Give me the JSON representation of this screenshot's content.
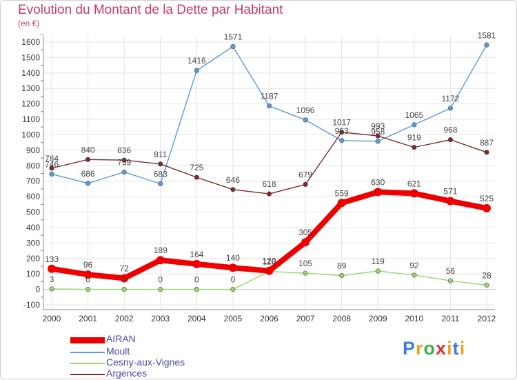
{
  "header": {
    "title": "Evolution du Montant de la Dette par Habitant",
    "unit": "(en €)"
  },
  "chart_data": {
    "type": "line",
    "title": "Evolution du Montant de la Dette par Habitant",
    "subtitle": "(en €)",
    "xlabel": "",
    "ylabel": "",
    "x": [
      "2000",
      "2001",
      "2002",
      "2003",
      "2004",
      "2005",
      "2006",
      "2007",
      "2008",
      "2009",
      "2010",
      "2011",
      "2012"
    ],
    "ylim": [
      -100,
      1600
    ],
    "yticks": [
      "-100",
      "0",
      "100",
      "200",
      "300",
      "400",
      "500",
      "600",
      "700",
      "800",
      "900",
      "1000",
      "1100",
      "1200",
      "1300",
      "1400",
      "1500",
      "1600"
    ],
    "grid": true,
    "legend": "bottom-left",
    "series": [
      {
        "name": "AIRAN",
        "color": "#ee0000",
        "values": [
          133,
          96,
          72,
          189,
          164,
          140,
          120,
          305,
          559,
          630,
          621,
          571,
          525
        ],
        "labels": [
          "133",
          "96",
          "72",
          "189",
          "164",
          "140",
          "120",
          "305",
          "559",
          "630",
          "621",
          "571",
          "525"
        ]
      },
      {
        "name": "Moult",
        "color": "#5b9bd5",
        "values": [
          746,
          686,
          759,
          683,
          1416,
          1571,
          1187,
          1096,
          963,
          958,
          1065,
          1172,
          1581
        ],
        "labels": [
          "746",
          "686",
          "759",
          "683",
          "1416",
          "1571",
          "1187",
          "1096",
          "963",
          "958",
          "1065",
          "1172",
          "1581"
        ]
      },
      {
        "name": "Cesny-aux-Vignes",
        "color": "#99d56a",
        "values": [
          3,
          0,
          0,
          0,
          0,
          0,
          116,
          105,
          89,
          119,
          92,
          56,
          28
        ],
        "labels": [
          "3",
          "0",
          "0",
          "0",
          "0",
          "0",
          "116",
          "105",
          "89",
          "119",
          "92",
          "56",
          "28"
        ]
      },
      {
        "name": "Argences",
        "color": "#7a2a2a",
        "values": [
          784,
          840,
          836,
          811,
          725,
          646,
          618,
          679,
          1017,
          993,
          919,
          968,
          887
        ],
        "labels": [
          "784",
          "840",
          "836",
          "811",
          "725",
          "646",
          "618",
          "679",
          "1017",
          "993",
          "919",
          "968",
          "887"
        ]
      }
    ]
  },
  "logo": {
    "letters": [
      "P",
      "r",
      "o",
      "x",
      "i",
      "t",
      "i"
    ],
    "colors": [
      "#3d7fd6",
      "#f0a020",
      "#3db14a",
      "#e03030",
      "#f0a020",
      "#3d7fd6",
      "#f0a020"
    ]
  }
}
